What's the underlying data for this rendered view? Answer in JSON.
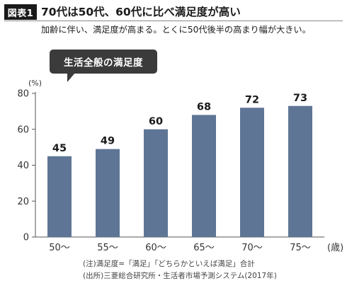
{
  "badge": "図表1",
  "title": "70代は50代、60代に比べ満足度が高い",
  "subtitle": "加齢に伴い、満足度が高まる。とくに50代後半の高まり幅が大きい。",
  "callout": "生活全般の満足度",
  "unit_label": "(%)",
  "x_unit_label": "(歳)",
  "notes": {
    "note1": "(注)満足度=「満足」「どちらかといえば満足」合計",
    "note2": "(出所)三菱総合研究所・生活者市場予測システム(2017年)"
  },
  "colors": {
    "bar": "#5f7595",
    "axis": "#555555"
  },
  "chart_data": {
    "type": "bar",
    "title": "生活全般の満足度",
    "categories": [
      "50〜",
      "55〜",
      "60〜",
      "65〜",
      "70〜",
      "75〜"
    ],
    "values": [
      45,
      49,
      60,
      68,
      72,
      73
    ],
    "ylabel": "(%)",
    "xlabel": "(歳)",
    "ylim": [
      0,
      80
    ],
    "yticks": [
      0,
      20,
      40,
      60,
      80
    ],
    "grid": false
  }
}
